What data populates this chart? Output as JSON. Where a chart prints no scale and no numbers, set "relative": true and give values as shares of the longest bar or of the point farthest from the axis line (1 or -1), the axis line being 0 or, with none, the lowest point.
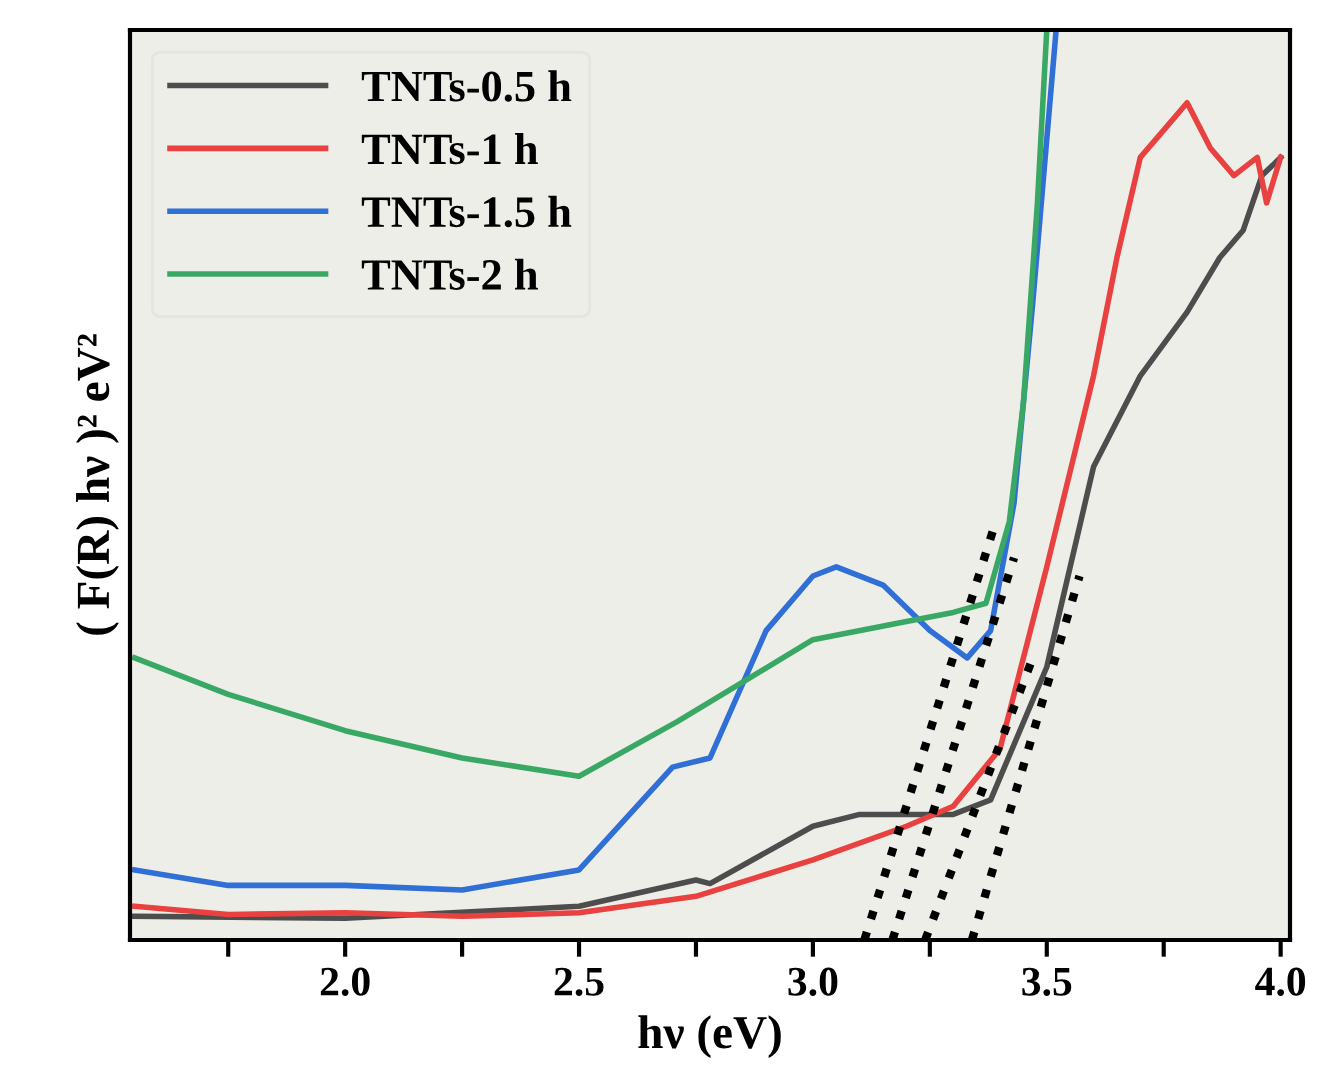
{
  "chart_data": {
    "type": "line",
    "xlabel": "hν (eV)",
    "ylabel": "( F(R) hν )² eV²",
    "relative": true,
    "xlim": [
      1.54,
      4.02
    ],
    "xticks": [
      {
        "value": 1.75,
        "label": null
      },
      {
        "value": 2,
        "label": "2.0"
      },
      {
        "value": 2.25,
        "label": null
      },
      2.5,
      {
        "value": 2.75,
        "label": null
      },
      {
        "value": 3,
        "label": "3.0"
      },
      {
        "value": 3.25,
        "label": null
      },
      3.5,
      {
        "value": 3.75,
        "label": null
      },
      {
        "value": 4,
        "label": "4.0"
      }
    ],
    "legend": "top left",
    "grid": false,
    "marker": "none",
    "line_style": "solid",
    "series": [
      {
        "name": "TNTs-0.5 h",
        "color": "#4d4d4d",
        "x": [
          1.55,
          2.0,
          2.5,
          2.75,
          2.78,
          3.0,
          3.1,
          3.3,
          3.38,
          3.5,
          3.6,
          3.7,
          3.8,
          3.87,
          3.92,
          3.96,
          4.0
        ],
        "values": [
          0.026,
          0.024,
          0.037,
          0.066,
          0.062,
          0.125,
          0.138,
          0.138,
          0.154,
          0.3,
          0.52,
          0.62,
          0.69,
          0.75,
          0.78,
          0.84,
          0.86
        ]
      },
      {
        "name": "TNTs-1 h",
        "color": "#e8413f",
        "x": [
          1.55,
          1.75,
          2.0,
          2.25,
          2.5,
          2.75,
          3.0,
          3.2,
          3.3,
          3.4,
          3.5,
          3.6,
          3.65,
          3.7,
          3.75,
          3.8,
          3.85,
          3.9,
          3.95,
          3.97,
          4.0
        ],
        "values": [
          0.037,
          0.028,
          0.03,
          0.026,
          0.03,
          0.048,
          0.088,
          0.125,
          0.147,
          0.21,
          0.41,
          0.62,
          0.75,
          0.86,
          0.89,
          0.92,
          0.87,
          0.84,
          0.86,
          0.81,
          0.86
        ]
      },
      {
        "name": "TNTs-1.5 h",
        "color": "#2f6fd6",
        "x": [
          1.55,
          1.75,
          2.0,
          2.25,
          2.5,
          2.7,
          2.78,
          2.9,
          3.0,
          3.05,
          3.15,
          3.25,
          3.33,
          3.38,
          3.43,
          3.47,
          3.52
        ],
        "values": [
          0.077,
          0.06,
          0.06,
          0.055,
          0.077,
          0.19,
          0.2,
          0.34,
          0.4,
          0.41,
          0.39,
          0.34,
          0.31,
          0.34,
          0.48,
          0.7,
          1.0
        ]
      },
      {
        "name": "TNTs-2 h",
        "color": "#3aa865",
        "x": [
          1.55,
          1.75,
          2.0,
          2.25,
          2.5,
          2.71,
          3.0,
          3.2,
          3.3,
          3.37,
          3.42,
          3.45,
          3.48,
          3.5
        ],
        "values": [
          0.31,
          0.27,
          0.23,
          0.2,
          0.18,
          0.24,
          0.33,
          0.35,
          0.36,
          0.37,
          0.46,
          0.59,
          0.81,
          1.0
        ]
      },
      {
        "color": "#000000",
        "line_style": "dotted",
        "x": [
          3.11,
          3.385
        ],
        "values": [
          0.0,
          0.45
        ]
      },
      {
        "color": "#000000",
        "line_style": "dotted",
        "x": [
          3.17,
          3.43
        ],
        "values": [
          0.0,
          0.42
        ]
      },
      {
        "color": "#000000",
        "line_style": "dotted",
        "x": [
          3.24,
          3.47
        ],
        "values": [
          0.0,
          0.31
        ]
      },
      {
        "color": "#000000",
        "line_style": "dotted",
        "x": [
          3.34,
          3.57
        ],
        "values": [
          0.0,
          0.4
        ]
      }
    ]
  }
}
